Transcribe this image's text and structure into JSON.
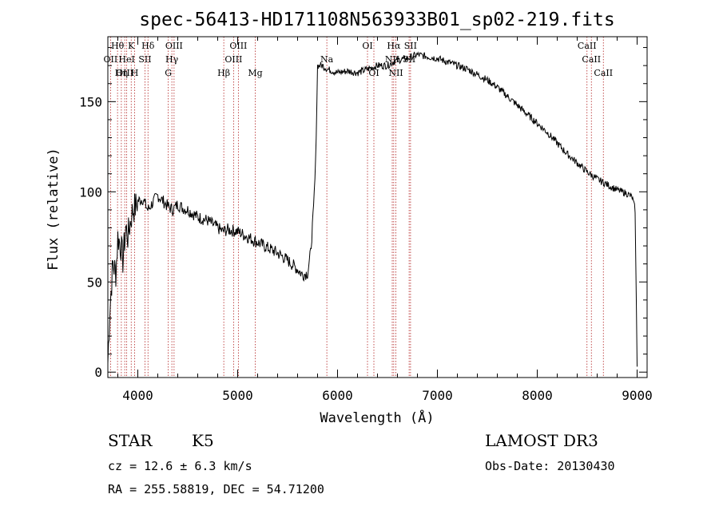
{
  "chart_data": {
    "type": "line",
    "title": "spec-56413-HD171108N563933B01_sp02-219.fits",
    "xlabel": "Wavelength (Å)",
    "ylabel": "Flux (relative)",
    "xlim": [
      3700,
      9100
    ],
    "ylim": [
      -3,
      186
    ],
    "xticks": [
      {
        "value": 4000,
        "label": "4000"
      },
      {
        "value": 5000,
        "label": "5000"
      },
      {
        "value": 6000,
        "label": "6000"
      },
      {
        "value": 7000,
        "label": "7000"
      },
      {
        "value": 8000,
        "label": "8000"
      },
      {
        "value": 9000,
        "label": "9000"
      }
    ],
    "yticks": [
      {
        "value": 0,
        "label": "0"
      },
      {
        "value": 50,
        "label": "50"
      },
      {
        "value": 100,
        "label": "100"
      },
      {
        "value": 150,
        "label": "150"
      }
    ],
    "grid": false,
    "series": [
      {
        "name": "spectrum",
        "x": [
          3700,
          3720,
          3750,
          3780,
          3800,
          3830,
          3850,
          3880,
          3900,
          3930,
          3950,
          3980,
          4000,
          4050,
          4100,
          4150,
          4200,
          4250,
          4300,
          4350,
          4400,
          4450,
          4500,
          4600,
          4700,
          4800,
          4850,
          4900,
          5000,
          5100,
          5200,
          5300,
          5400,
          5500,
          5600,
          5650,
          5700,
          5730,
          5760,
          5780,
          5800,
          5850,
          5900,
          6000,
          6100,
          6200,
          6300,
          6400,
          6500,
          6560,
          6600,
          6700,
          6750,
          6800,
          6900,
          7000,
          7100,
          7200,
          7300,
          7400,
          7500,
          7600,
          7700,
          7800,
          7900,
          8000,
          8100,
          8200,
          8300,
          8400,
          8500,
          8600,
          8700,
          8800,
          8900,
          8950,
          8980,
          9000
        ],
        "y": [
          5,
          35,
          60,
          55,
          75,
          70,
          62,
          80,
          75,
          85,
          90,
          92,
          95,
          96,
          90,
          94,
          98,
          95,
          92,
          90,
          93,
          91,
          90,
          86,
          84,
          80,
          78,
          79,
          78,
          75,
          72,
          69,
          66,
          62,
          57,
          54,
          55,
          66,
          90,
          115,
          170,
          170,
          168,
          166,
          167,
          166,
          168,
          170,
          170,
          172,
          173,
          174,
          175,
          176,
          175,
          174,
          172,
          170,
          168,
          165,
          162,
          158,
          153,
          148,
          143,
          138,
          133,
          127,
          121,
          116,
          111,
          107,
          104,
          101,
          99,
          97,
          90,
          3
        ],
        "color": "#000000"
      }
    ],
    "lines": [
      {
        "label": "Hθ",
        "x": 3797
      },
      {
        "label": "OII",
        "x": 3727
      },
      {
        "label": "OIII",
        "x": 3869
      },
      {
        "label": "HeI",
        "x": 3889
      },
      {
        "label": "Hη",
        "x": 3835
      },
      {
        "label": "K",
        "x": 3934
      },
      {
        "label": "H",
        "x": 3968
      },
      {
        "label": "SII",
        "x": 4072
      },
      {
        "label": "Hδ",
        "x": 4102
      },
      {
        "label": "OIII",
        "x": 4363
      },
      {
        "label": "Hγ",
        "x": 4341
      },
      {
        "label": "G",
        "x": 4305
      },
      {
        "label": "Hβ",
        "x": 4861
      },
      {
        "label": "OIII",
        "x": 4959
      },
      {
        "label": "OIII",
        "x": 5007
      },
      {
        "label": "Mg",
        "x": 5176
      },
      {
        "label": "Na",
        "x": 5893
      },
      {
        "label": "OI",
        "x": 6300
      },
      {
        "label": "OI",
        "x": 6364
      },
      {
        "label": "Hα",
        "x": 6563
      },
      {
        "label": "NII",
        "x": 6548
      },
      {
        "label": "NII",
        "x": 6584
      },
      {
        "label": "SII",
        "x": 6717
      },
      {
        "label": "SII",
        "x": 6731
      },
      {
        "label": "CaII",
        "x": 8498
      },
      {
        "label": "CaII",
        "x": 8542
      },
      {
        "label": "CaII",
        "x": 8662
      }
    ],
    "line_label_rows": [
      [
        {
          "t": "Hθ",
          "x": 3797
        },
        {
          "t": "K",
          "x": 3934
        },
        {
          "t": "Hδ",
          "x": 4102
        },
        {
          "t": "OIII",
          "x": 4363
        },
        {
          "t": "OIII",
          "x": 5007
        },
        {
          "t": "OI",
          "x": 6300
        },
        {
          "t": "Hα",
          "x": 6563
        },
        {
          "t": "SII",
          "x": 6731
        },
        {
          "t": "CaII",
          "x": 8498
        }
      ],
      [
        {
          "t": "OII",
          "x": 3727
        },
        {
          "t": "HeI",
          "x": 3889
        },
        {
          "t": "SII",
          "x": 4072
        },
        {
          "t": "Hγ",
          "x": 4341
        },
        {
          "t": "OIII",
          "x": 4959
        },
        {
          "t": "Na",
          "x": 5893
        },
        {
          "t": "NII",
          "x": 6548
        },
        {
          "t": "SII",
          "x": 6717
        },
        {
          "t": "CaII",
          "x": 8542
        }
      ],
      [
        {
          "t": "OIII",
          "x": 3869
        },
        {
          "t": "Hη",
          "x": 3835
        },
        {
          "t": "H",
          "x": 3968
        },
        {
          "t": "G",
          "x": 4305
        },
        {
          "t": "Hβ",
          "x": 4861
        },
        {
          "t": "Mg",
          "x": 5176
        },
        {
          "t": "OI",
          "x": 6364
        },
        {
          "t": "NII",
          "x": 6584
        },
        {
          "t": "CaII",
          "x": 8662
        }
      ]
    ]
  },
  "footer": {
    "object_class": "STAR",
    "subclass": "K5",
    "redshift": "cz = 12.6 ± 6.3 km/s",
    "coords": "RA = 255.58819, DEC =  54.71200",
    "survey": "LAMOST DR3",
    "obs_date": "Obs-Date: 20130430"
  }
}
